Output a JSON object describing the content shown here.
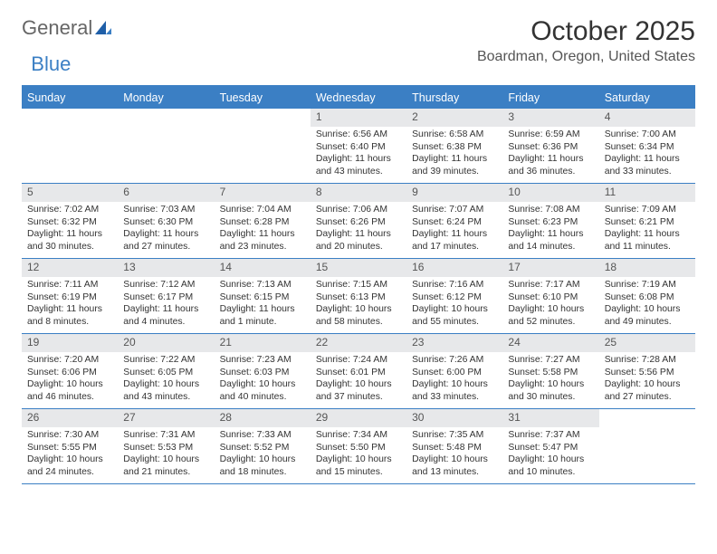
{
  "logo": {
    "general": "General",
    "blue": "Blue"
  },
  "title": "October 2025",
  "location": "Boardman, Oregon, United States",
  "colors": {
    "accent": "#3b7fc4",
    "header_text": "#ffffff",
    "daynum_bg": "#e7e8ea",
    "body_text": "#333333",
    "muted_text": "#555555",
    "background": "#ffffff"
  },
  "typography": {
    "title_fontsize": 30,
    "location_fontsize": 16,
    "dayheader_fontsize": 12.5,
    "cell_fontsize": 10.4
  },
  "day_headers": [
    "Sunday",
    "Monday",
    "Tuesday",
    "Wednesday",
    "Thursday",
    "Friday",
    "Saturday"
  ],
  "weeks": [
    [
      {
        "num": "",
        "lines": []
      },
      {
        "num": "",
        "lines": []
      },
      {
        "num": "",
        "lines": []
      },
      {
        "num": "1",
        "lines": [
          "Sunrise: 6:56 AM",
          "Sunset: 6:40 PM",
          "Daylight: 11 hours",
          "and 43 minutes."
        ]
      },
      {
        "num": "2",
        "lines": [
          "Sunrise: 6:58 AM",
          "Sunset: 6:38 PM",
          "Daylight: 11 hours",
          "and 39 minutes."
        ]
      },
      {
        "num": "3",
        "lines": [
          "Sunrise: 6:59 AM",
          "Sunset: 6:36 PM",
          "Daylight: 11 hours",
          "and 36 minutes."
        ]
      },
      {
        "num": "4",
        "lines": [
          "Sunrise: 7:00 AM",
          "Sunset: 6:34 PM",
          "Daylight: 11 hours",
          "and 33 minutes."
        ]
      }
    ],
    [
      {
        "num": "5",
        "lines": [
          "Sunrise: 7:02 AM",
          "Sunset: 6:32 PM",
          "Daylight: 11 hours",
          "and 30 minutes."
        ]
      },
      {
        "num": "6",
        "lines": [
          "Sunrise: 7:03 AM",
          "Sunset: 6:30 PM",
          "Daylight: 11 hours",
          "and 27 minutes."
        ]
      },
      {
        "num": "7",
        "lines": [
          "Sunrise: 7:04 AM",
          "Sunset: 6:28 PM",
          "Daylight: 11 hours",
          "and 23 minutes."
        ]
      },
      {
        "num": "8",
        "lines": [
          "Sunrise: 7:06 AM",
          "Sunset: 6:26 PM",
          "Daylight: 11 hours",
          "and 20 minutes."
        ]
      },
      {
        "num": "9",
        "lines": [
          "Sunrise: 7:07 AM",
          "Sunset: 6:24 PM",
          "Daylight: 11 hours",
          "and 17 minutes."
        ]
      },
      {
        "num": "10",
        "lines": [
          "Sunrise: 7:08 AM",
          "Sunset: 6:23 PM",
          "Daylight: 11 hours",
          "and 14 minutes."
        ]
      },
      {
        "num": "11",
        "lines": [
          "Sunrise: 7:09 AM",
          "Sunset: 6:21 PM",
          "Daylight: 11 hours",
          "and 11 minutes."
        ]
      }
    ],
    [
      {
        "num": "12",
        "lines": [
          "Sunrise: 7:11 AM",
          "Sunset: 6:19 PM",
          "Daylight: 11 hours",
          "and 8 minutes."
        ]
      },
      {
        "num": "13",
        "lines": [
          "Sunrise: 7:12 AM",
          "Sunset: 6:17 PM",
          "Daylight: 11 hours",
          "and 4 minutes."
        ]
      },
      {
        "num": "14",
        "lines": [
          "Sunrise: 7:13 AM",
          "Sunset: 6:15 PM",
          "Daylight: 11 hours",
          "and 1 minute."
        ]
      },
      {
        "num": "15",
        "lines": [
          "Sunrise: 7:15 AM",
          "Sunset: 6:13 PM",
          "Daylight: 10 hours",
          "and 58 minutes."
        ]
      },
      {
        "num": "16",
        "lines": [
          "Sunrise: 7:16 AM",
          "Sunset: 6:12 PM",
          "Daylight: 10 hours",
          "and 55 minutes."
        ]
      },
      {
        "num": "17",
        "lines": [
          "Sunrise: 7:17 AM",
          "Sunset: 6:10 PM",
          "Daylight: 10 hours",
          "and 52 minutes."
        ]
      },
      {
        "num": "18",
        "lines": [
          "Sunrise: 7:19 AM",
          "Sunset: 6:08 PM",
          "Daylight: 10 hours",
          "and 49 minutes."
        ]
      }
    ],
    [
      {
        "num": "19",
        "lines": [
          "Sunrise: 7:20 AM",
          "Sunset: 6:06 PM",
          "Daylight: 10 hours",
          "and 46 minutes."
        ]
      },
      {
        "num": "20",
        "lines": [
          "Sunrise: 7:22 AM",
          "Sunset: 6:05 PM",
          "Daylight: 10 hours",
          "and 43 minutes."
        ]
      },
      {
        "num": "21",
        "lines": [
          "Sunrise: 7:23 AM",
          "Sunset: 6:03 PM",
          "Daylight: 10 hours",
          "and 40 minutes."
        ]
      },
      {
        "num": "22",
        "lines": [
          "Sunrise: 7:24 AM",
          "Sunset: 6:01 PM",
          "Daylight: 10 hours",
          "and 37 minutes."
        ]
      },
      {
        "num": "23",
        "lines": [
          "Sunrise: 7:26 AM",
          "Sunset: 6:00 PM",
          "Daylight: 10 hours",
          "and 33 minutes."
        ]
      },
      {
        "num": "24",
        "lines": [
          "Sunrise: 7:27 AM",
          "Sunset: 5:58 PM",
          "Daylight: 10 hours",
          "and 30 minutes."
        ]
      },
      {
        "num": "25",
        "lines": [
          "Sunrise: 7:28 AM",
          "Sunset: 5:56 PM",
          "Daylight: 10 hours",
          "and 27 minutes."
        ]
      }
    ],
    [
      {
        "num": "26",
        "lines": [
          "Sunrise: 7:30 AM",
          "Sunset: 5:55 PM",
          "Daylight: 10 hours",
          "and 24 minutes."
        ]
      },
      {
        "num": "27",
        "lines": [
          "Sunrise: 7:31 AM",
          "Sunset: 5:53 PM",
          "Daylight: 10 hours",
          "and 21 minutes."
        ]
      },
      {
        "num": "28",
        "lines": [
          "Sunrise: 7:33 AM",
          "Sunset: 5:52 PM",
          "Daylight: 10 hours",
          "and 18 minutes."
        ]
      },
      {
        "num": "29",
        "lines": [
          "Sunrise: 7:34 AM",
          "Sunset: 5:50 PM",
          "Daylight: 10 hours",
          "and 15 minutes."
        ]
      },
      {
        "num": "30",
        "lines": [
          "Sunrise: 7:35 AM",
          "Sunset: 5:48 PM",
          "Daylight: 10 hours",
          "and 13 minutes."
        ]
      },
      {
        "num": "31",
        "lines": [
          "Sunrise: 7:37 AM",
          "Sunset: 5:47 PM",
          "Daylight: 10 hours",
          "and 10 minutes."
        ]
      },
      {
        "num": "",
        "lines": []
      }
    ]
  ]
}
